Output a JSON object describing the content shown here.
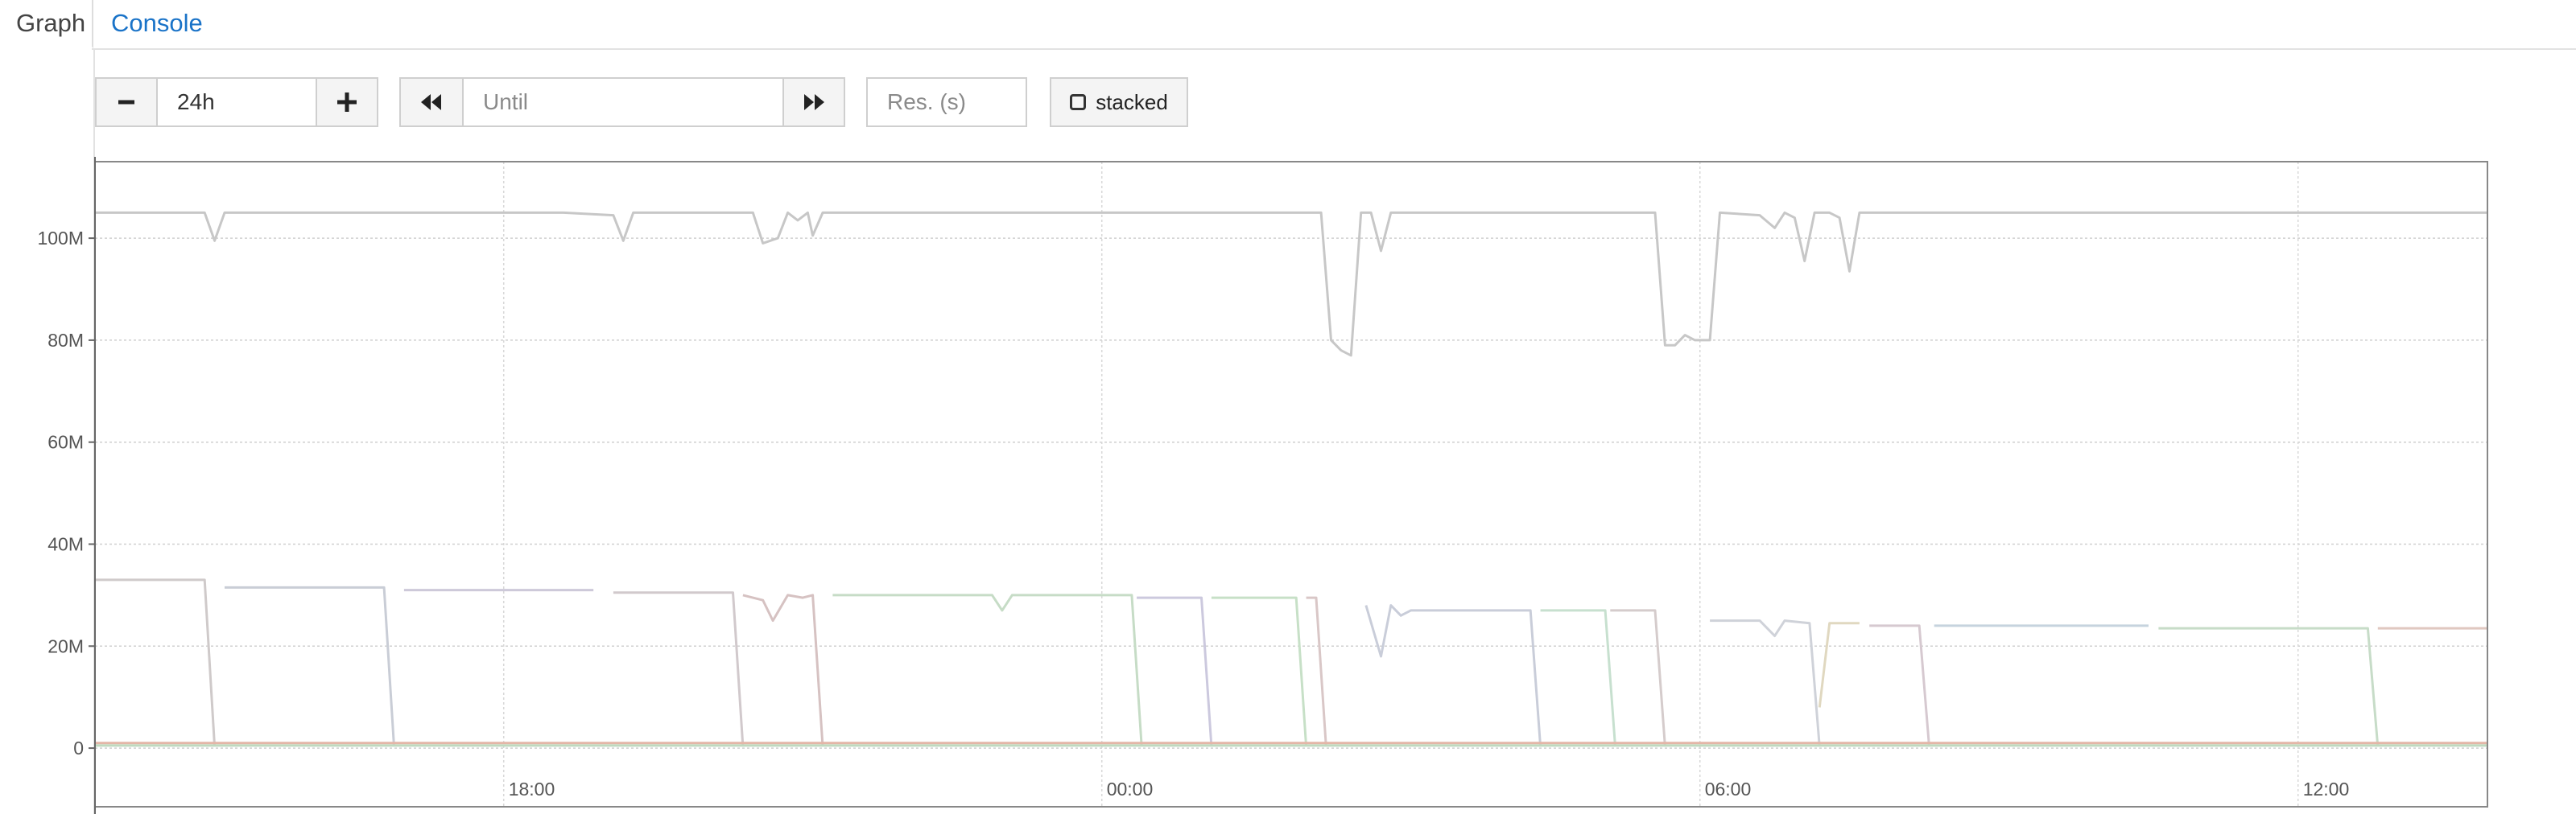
{
  "tabs": [
    {
      "label": "Graph",
      "active": true
    },
    {
      "label": "Console",
      "active": false
    }
  ],
  "controls": {
    "range_value": "24h",
    "until_placeholder": "Until",
    "resolution_placeholder": "Res. (s)",
    "stacked_label": "stacked",
    "stacked_checked": false
  },
  "icons": {
    "decrease": "minus-icon",
    "increase": "plus-icon",
    "back": "fast-backward-icon",
    "forward": "fast-forward-icon",
    "stacked": "checkbox-icon"
  },
  "chart_data": {
    "type": "line",
    "y_ticks": [
      "0",
      "20M",
      "40M",
      "60M",
      "80M",
      "100M"
    ],
    "x_ticks": [
      {
        "label": "18:00",
        "hour": 18
      },
      {
        "label": "00:00",
        "hour": 24
      },
      {
        "label": "06:00",
        "hour": 30
      },
      {
        "label": "12:00",
        "hour": 36
      }
    ],
    "x_range_hours": [
      13.9,
      37.9
    ],
    "y_range_m": [
      -11.5,
      115
    ],
    "grid": true,
    "series": [
      {
        "color": "#c7c7c7",
        "points": [
          [
            13.9,
            105
          ],
          [
            15.0,
            105
          ],
          [
            15.1,
            99.5
          ],
          [
            15.2,
            105
          ],
          [
            18.6,
            105
          ],
          [
            19.1,
            104.5
          ],
          [
            19.2,
            99.5
          ],
          [
            19.3,
            105
          ],
          [
            20.5,
            105
          ],
          [
            20.6,
            99
          ],
          [
            20.75,
            100
          ],
          [
            20.85,
            105
          ],
          [
            20.95,
            103.5
          ],
          [
            21.05,
            105
          ],
          [
            21.1,
            100.5
          ],
          [
            21.2,
            105
          ],
          [
            26.2,
            105
          ],
          [
            26.3,
            80
          ],
          [
            26.4,
            78
          ],
          [
            26.5,
            77
          ],
          [
            26.6,
            105
          ],
          [
            26.7,
            105
          ],
          [
            26.8,
            97.5
          ],
          [
            26.9,
            105
          ],
          [
            29.55,
            105
          ],
          [
            29.65,
            79
          ],
          [
            29.75,
            79
          ],
          [
            29.85,
            81
          ],
          [
            29.95,
            80
          ],
          [
            30.1,
            80
          ],
          [
            30.2,
            105
          ],
          [
            30.6,
            104.5
          ],
          [
            30.75,
            102
          ],
          [
            30.85,
            105
          ],
          [
            30.95,
            104
          ],
          [
            31.05,
            95.5
          ],
          [
            31.15,
            105
          ],
          [
            31.3,
            105
          ],
          [
            31.4,
            104
          ],
          [
            31.5,
            93.5
          ],
          [
            31.6,
            105
          ],
          [
            37.9,
            105
          ]
        ]
      },
      {
        "color": "#cfcaca",
        "points": [
          [
            13.9,
            33
          ],
          [
            15.0,
            33
          ],
          [
            15.1,
            0.3
          ]
        ]
      },
      {
        "color": "#c9cdd6",
        "points": [
          [
            15.2,
            31.5
          ],
          [
            16.8,
            31.5
          ],
          [
            16.9,
            0.3
          ]
        ]
      },
      {
        "color": "#cdc9d9",
        "points": [
          [
            17.0,
            31
          ],
          [
            18.9,
            31
          ]
        ]
      },
      {
        "color": "#d1c9cc",
        "points": [
          [
            19.1,
            30.5
          ],
          [
            20.3,
            30.5
          ],
          [
            20.4,
            0.3
          ]
        ]
      },
      {
        "color": "#d6c2c2",
        "points": [
          [
            20.4,
            30
          ],
          [
            20.6,
            29
          ],
          [
            20.7,
            25
          ],
          [
            20.85,
            30
          ],
          [
            21.0,
            29.5
          ],
          [
            21.1,
            30
          ],
          [
            21.2,
            0.3
          ]
        ]
      },
      {
        "color": "#c6dcc6",
        "points": [
          [
            21.3,
            30
          ],
          [
            22.9,
            30
          ],
          [
            23.0,
            27
          ],
          [
            23.1,
            30
          ],
          [
            24.3,
            30
          ],
          [
            24.4,
            0.3
          ]
        ]
      },
      {
        "color": "#ccc9de",
        "points": [
          [
            24.35,
            29.5
          ],
          [
            25.0,
            29.5
          ],
          [
            25.1,
            0.3
          ]
        ]
      },
      {
        "color": "#c7e0c7",
        "points": [
          [
            25.1,
            29.5
          ],
          [
            25.95,
            29.5
          ],
          [
            26.05,
            0.3
          ]
        ]
      },
      {
        "color": "#d9c7c7",
        "points": [
          [
            26.05,
            29.5
          ],
          [
            26.15,
            29.5
          ],
          [
            26.25,
            0.3
          ]
        ]
      },
      {
        "color": "#c9cdd9",
        "points": [
          [
            26.65,
            28
          ],
          [
            26.8,
            18
          ],
          [
            26.9,
            28
          ],
          [
            27.0,
            26
          ],
          [
            27.1,
            27
          ],
          [
            28.2,
            27
          ],
          [
            28.3,
            27
          ],
          [
            28.4,
            0.3
          ]
        ]
      },
      {
        "color": "#c7e0cf",
        "points": [
          [
            28.4,
            27
          ],
          [
            29.05,
            27
          ],
          [
            29.15,
            0.3
          ]
        ]
      },
      {
        "color": "#d5cccc",
        "points": [
          [
            29.1,
            27
          ],
          [
            29.55,
            27
          ],
          [
            29.65,
            0.3
          ]
        ]
      },
      {
        "color": "#cfd2d9",
        "points": [
          [
            30.1,
            25
          ],
          [
            30.6,
            25
          ],
          [
            30.75,
            22
          ],
          [
            30.85,
            25
          ],
          [
            31.1,
            24.5
          ],
          [
            31.2,
            0.3
          ]
        ]
      },
      {
        "color": "#e0d8c0",
        "points": [
          [
            31.2,
            8
          ],
          [
            31.3,
            24.5
          ],
          [
            31.6,
            24.5
          ]
        ]
      },
      {
        "color": "#d6c9d0",
        "points": [
          [
            31.7,
            24
          ],
          [
            32.2,
            24
          ],
          [
            32.3,
            0.3
          ]
        ]
      },
      {
        "color": "#c6d3de",
        "points": [
          [
            32.35,
            24
          ],
          [
            34.5,
            24
          ]
        ]
      },
      {
        "color": "#c7dcc8",
        "points": [
          [
            34.6,
            23.5
          ],
          [
            36.5,
            23.5
          ],
          [
            36.7,
            23.5
          ],
          [
            36.8,
            0.3
          ]
        ]
      },
      {
        "color": "#e0c8c0",
        "points": [
          [
            36.8,
            23.5
          ],
          [
            37.9,
            23.5
          ]
        ]
      },
      {
        "color": "#e3b6a7",
        "points": [
          [
            13.9,
            1
          ],
          [
            37.9,
            1
          ]
        ]
      },
      {
        "color": "#bfd9bf",
        "points": [
          [
            13.9,
            0.5
          ],
          [
            37.9,
            0.5
          ]
        ]
      }
    ]
  }
}
